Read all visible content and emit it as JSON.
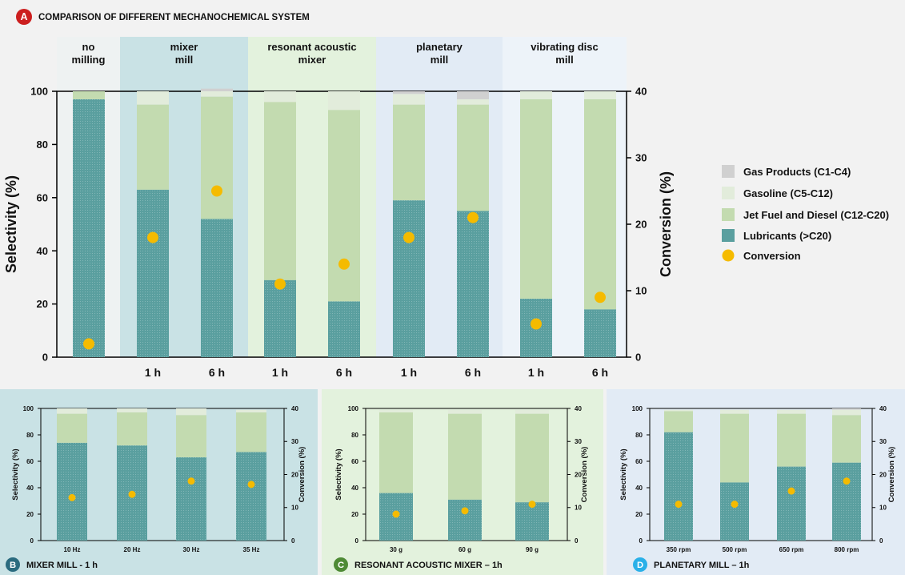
{
  "colors": {
    "lubricants": "#5a9f9f",
    "jet": "#c3dbb0",
    "gasoline": "#e2ecdb",
    "gas": "#d0d0d0",
    "conversion": "#f5bb00",
    "mixer_bg": "#c9e2e5",
    "resonant_bg": "#e3f2dd",
    "planetary_bg": "#e2ebf5",
    "vibrating_bg": "#edf3f9",
    "nomill_bg": "#eef2f2",
    "badge_A": "#cc1f1f",
    "badge_B": "#2a6b7f",
    "badge_C": "#4e8a35",
    "badge_D": "#2ab0e8"
  },
  "legend": [
    {
      "label": "Gas Products (C1-C4)",
      "key": "gas",
      "shape": "square"
    },
    {
      "label": "Gasoline (C5-C12)",
      "key": "gasoline",
      "shape": "square"
    },
    {
      "label": "Jet Fuel and Diesel (C12-C20)",
      "key": "jet",
      "shape": "square"
    },
    {
      "label": "Lubricants (>C20)",
      "key": "lubricants",
      "shape": "square"
    },
    {
      "label": "Conversion",
      "key": "conversion",
      "shape": "circle"
    }
  ],
  "chart_data": [
    {
      "panel": "A",
      "type": "bar",
      "stacked": true,
      "title": "COMPARISON OF DIFFERENT MECHANOCHEMICAL SYSTEM",
      "ylabel": "Selectivity (%)",
      "y2label": "Conversion (%)",
      "ylim": [
        0,
        100
      ],
      "y2lim": [
        0,
        40
      ],
      "yticks": [
        "0",
        "20",
        "40",
        "60",
        "80",
        "100"
      ],
      "y2ticks": [
        "0",
        "10",
        "20",
        "30",
        "40"
      ],
      "groups": [
        {
          "label": "no\nmilling",
          "bg": "nomill_bg"
        },
        {
          "label": "mixer\nmill",
          "bg": "mixer_bg"
        },
        {
          "label": "resonant acoustic\nmixer",
          "bg": "resonant_bg"
        },
        {
          "label": "planetary\nmill",
          "bg": "planetary_bg"
        },
        {
          "label": "vibrating disc\nmill",
          "bg": "vibrating_bg"
        }
      ],
      "categories": [
        "",
        "1 h",
        "6 h",
        "1 h",
        "6 h",
        "1 h",
        "6 h",
        "1 h",
        "6 h"
      ],
      "category_group": [
        0,
        1,
        1,
        2,
        2,
        3,
        3,
        4,
        4
      ],
      "series": [
        {
          "name": "Lubricants (>C20)",
          "key": "lubricants",
          "values": [
            97,
            63,
            52,
            29,
            21,
            59,
            55,
            22,
            18
          ]
        },
        {
          "name": "Jet Fuel and Diesel (C12-C20)",
          "key": "jet",
          "values": [
            3,
            32,
            46,
            67,
            72,
            36,
            40,
            75,
            79
          ]
        },
        {
          "name": "Gasoline (C5-C12)",
          "key": "gasoline",
          "values": [
            0,
            5,
            2,
            4,
            7,
            4,
            2,
            3,
            3
          ]
        },
        {
          "name": "Gas Products (C1-C4)",
          "key": "gas",
          "values": [
            0,
            0,
            1,
            0,
            0,
            1,
            3,
            0,
            0
          ]
        }
      ],
      "conversion": [
        2,
        18,
        25,
        11,
        14,
        18,
        21,
        5,
        9
      ]
    },
    {
      "panel": "B",
      "type": "bar",
      "stacked": true,
      "title": "MIXER MILL - 1 h",
      "ylabel": "Selectivity (%)",
      "y2label": "Conversion (%)",
      "ylim": [
        0,
        100
      ],
      "y2lim": [
        0,
        40
      ],
      "yticks": [
        "0",
        "20",
        "40",
        "60",
        "80",
        "100"
      ],
      "y2ticks": [
        "0",
        "10",
        "20",
        "30",
        "40"
      ],
      "categories": [
        "10 Hz",
        "20 Hz",
        "30 Hz",
        "35 Hz"
      ],
      "series": [
        {
          "name": "Lubricants (>C20)",
          "key": "lubricants",
          "values": [
            74,
            72,
            63,
            67
          ]
        },
        {
          "name": "Jet Fuel and Diesel (C12-C20)",
          "key": "jet",
          "values": [
            22,
            25,
            32,
            30
          ]
        },
        {
          "name": "Gasoline (C5-C12)",
          "key": "gasoline",
          "values": [
            4,
            3,
            5,
            2
          ]
        },
        {
          "name": "Gas Products (C1-C4)",
          "key": "gas",
          "values": [
            0,
            0,
            0,
            0
          ]
        }
      ],
      "conversion": [
        13,
        14,
        18,
        17
      ]
    },
    {
      "panel": "C",
      "type": "bar",
      "stacked": true,
      "title": "RESONANT ACOUSTIC MIXER – 1h",
      "ylabel": "Selectivity (%)",
      "y2label": "Conversion (%)",
      "ylim": [
        0,
        100
      ],
      "y2lim": [
        0,
        40
      ],
      "yticks": [
        "0",
        "20",
        "40",
        "60",
        "80",
        "100"
      ],
      "y2ticks": [
        "0",
        "10",
        "20",
        "30",
        "40"
      ],
      "categories": [
        "30 g",
        "60 g",
        "90 g"
      ],
      "series": [
        {
          "name": "Lubricants (>C20)",
          "key": "lubricants",
          "values": [
            36,
            31,
            29
          ]
        },
        {
          "name": "Jet Fuel and Diesel (C12-C20)",
          "key": "jet",
          "values": [
            61,
            65,
            67
          ]
        },
        {
          "name": "Gasoline (C5-C12)",
          "key": "gasoline",
          "values": [
            2,
            3,
            3
          ]
        },
        {
          "name": "Gas Products (C1-C4)",
          "key": "gas",
          "values": [
            0,
            0,
            0
          ]
        }
      ],
      "conversion": [
        8,
        9,
        11
      ]
    },
    {
      "panel": "D",
      "type": "bar",
      "stacked": true,
      "title": "PLANETARY MILL – 1h",
      "ylabel": "Selectivity (%)",
      "y2label": "Conversion (%)",
      "ylim": [
        0,
        100
      ],
      "y2lim": [
        0,
        40
      ],
      "yticks": [
        "0",
        "20",
        "40",
        "60",
        "80",
        "100"
      ],
      "y2ticks": [
        "0",
        "10",
        "20",
        "30",
        "40"
      ],
      "categories": [
        "350 rpm",
        "500 rpm",
        "650 rpm",
        "800 rpm"
      ],
      "series": [
        {
          "name": "Lubricants (>C20)",
          "key": "lubricants",
          "values": [
            82,
            44,
            56,
            59
          ]
        },
        {
          "name": "Jet Fuel and Diesel (C12-C20)",
          "key": "jet",
          "values": [
            16,
            52,
            40,
            36
          ]
        },
        {
          "name": "Gasoline (C5-C12)",
          "key": "gasoline",
          "values": [
            1,
            3,
            3,
            4
          ]
        },
        {
          "name": "Gas Products (C1-C4)",
          "key": "gas",
          "values": [
            0,
            0,
            0,
            1
          ]
        }
      ],
      "conversion": [
        11,
        11,
        15,
        18
      ]
    }
  ]
}
